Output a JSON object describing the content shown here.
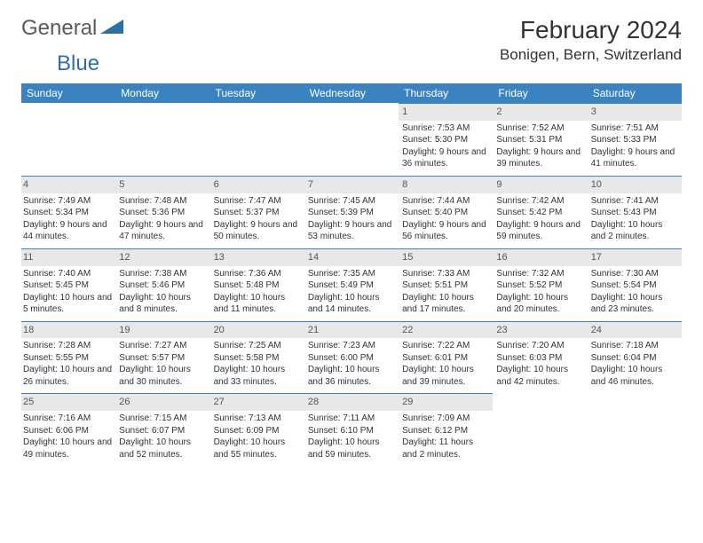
{
  "logo": {
    "general": "General",
    "blue": "Blue",
    "accent": "#2f6fa8"
  },
  "title": "February 2024",
  "location": "Bonigen, Bern, Switzerland",
  "colors": {
    "header_bg": "#3b83c0",
    "header_text": "#ffffff",
    "daynum_bg": "#e8e8e8",
    "daynum_border": "#3b83c0",
    "text": "#333333"
  },
  "weekdays": [
    "Sunday",
    "Monday",
    "Tuesday",
    "Wednesday",
    "Thursday",
    "Friday",
    "Saturday"
  ],
  "leading_blanks": 4,
  "days": [
    {
      "n": 1,
      "sunrise": "7:53 AM",
      "sunset": "5:30 PM",
      "daylight": "9 hours and 36 minutes."
    },
    {
      "n": 2,
      "sunrise": "7:52 AM",
      "sunset": "5:31 PM",
      "daylight": "9 hours and 39 minutes."
    },
    {
      "n": 3,
      "sunrise": "7:51 AM",
      "sunset": "5:33 PM",
      "daylight": "9 hours and 41 minutes."
    },
    {
      "n": 4,
      "sunrise": "7:49 AM",
      "sunset": "5:34 PM",
      "daylight": "9 hours and 44 minutes."
    },
    {
      "n": 5,
      "sunrise": "7:48 AM",
      "sunset": "5:36 PM",
      "daylight": "9 hours and 47 minutes."
    },
    {
      "n": 6,
      "sunrise": "7:47 AM",
      "sunset": "5:37 PM",
      "daylight": "9 hours and 50 minutes."
    },
    {
      "n": 7,
      "sunrise": "7:45 AM",
      "sunset": "5:39 PM",
      "daylight": "9 hours and 53 minutes."
    },
    {
      "n": 8,
      "sunrise": "7:44 AM",
      "sunset": "5:40 PM",
      "daylight": "9 hours and 56 minutes."
    },
    {
      "n": 9,
      "sunrise": "7:42 AM",
      "sunset": "5:42 PM",
      "daylight": "9 hours and 59 minutes."
    },
    {
      "n": 10,
      "sunrise": "7:41 AM",
      "sunset": "5:43 PM",
      "daylight": "10 hours and 2 minutes."
    },
    {
      "n": 11,
      "sunrise": "7:40 AM",
      "sunset": "5:45 PM",
      "daylight": "10 hours and 5 minutes."
    },
    {
      "n": 12,
      "sunrise": "7:38 AM",
      "sunset": "5:46 PM",
      "daylight": "10 hours and 8 minutes."
    },
    {
      "n": 13,
      "sunrise": "7:36 AM",
      "sunset": "5:48 PM",
      "daylight": "10 hours and 11 minutes."
    },
    {
      "n": 14,
      "sunrise": "7:35 AM",
      "sunset": "5:49 PM",
      "daylight": "10 hours and 14 minutes."
    },
    {
      "n": 15,
      "sunrise": "7:33 AM",
      "sunset": "5:51 PM",
      "daylight": "10 hours and 17 minutes."
    },
    {
      "n": 16,
      "sunrise": "7:32 AM",
      "sunset": "5:52 PM",
      "daylight": "10 hours and 20 minutes."
    },
    {
      "n": 17,
      "sunrise": "7:30 AM",
      "sunset": "5:54 PM",
      "daylight": "10 hours and 23 minutes."
    },
    {
      "n": 18,
      "sunrise": "7:28 AM",
      "sunset": "5:55 PM",
      "daylight": "10 hours and 26 minutes."
    },
    {
      "n": 19,
      "sunrise": "7:27 AM",
      "sunset": "5:57 PM",
      "daylight": "10 hours and 30 minutes."
    },
    {
      "n": 20,
      "sunrise": "7:25 AM",
      "sunset": "5:58 PM",
      "daylight": "10 hours and 33 minutes."
    },
    {
      "n": 21,
      "sunrise": "7:23 AM",
      "sunset": "6:00 PM",
      "daylight": "10 hours and 36 minutes."
    },
    {
      "n": 22,
      "sunrise": "7:22 AM",
      "sunset": "6:01 PM",
      "daylight": "10 hours and 39 minutes."
    },
    {
      "n": 23,
      "sunrise": "7:20 AM",
      "sunset": "6:03 PM",
      "daylight": "10 hours and 42 minutes."
    },
    {
      "n": 24,
      "sunrise": "7:18 AM",
      "sunset": "6:04 PM",
      "daylight": "10 hours and 46 minutes."
    },
    {
      "n": 25,
      "sunrise": "7:16 AM",
      "sunset": "6:06 PM",
      "daylight": "10 hours and 49 minutes."
    },
    {
      "n": 26,
      "sunrise": "7:15 AM",
      "sunset": "6:07 PM",
      "daylight": "10 hours and 52 minutes."
    },
    {
      "n": 27,
      "sunrise": "7:13 AM",
      "sunset": "6:09 PM",
      "daylight": "10 hours and 55 minutes."
    },
    {
      "n": 28,
      "sunrise": "7:11 AM",
      "sunset": "6:10 PM",
      "daylight": "10 hours and 59 minutes."
    },
    {
      "n": 29,
      "sunrise": "7:09 AM",
      "sunset": "6:12 PM",
      "daylight": "11 hours and 2 minutes."
    }
  ],
  "labels": {
    "sunrise": "Sunrise:",
    "sunset": "Sunset:",
    "daylight": "Daylight:"
  }
}
